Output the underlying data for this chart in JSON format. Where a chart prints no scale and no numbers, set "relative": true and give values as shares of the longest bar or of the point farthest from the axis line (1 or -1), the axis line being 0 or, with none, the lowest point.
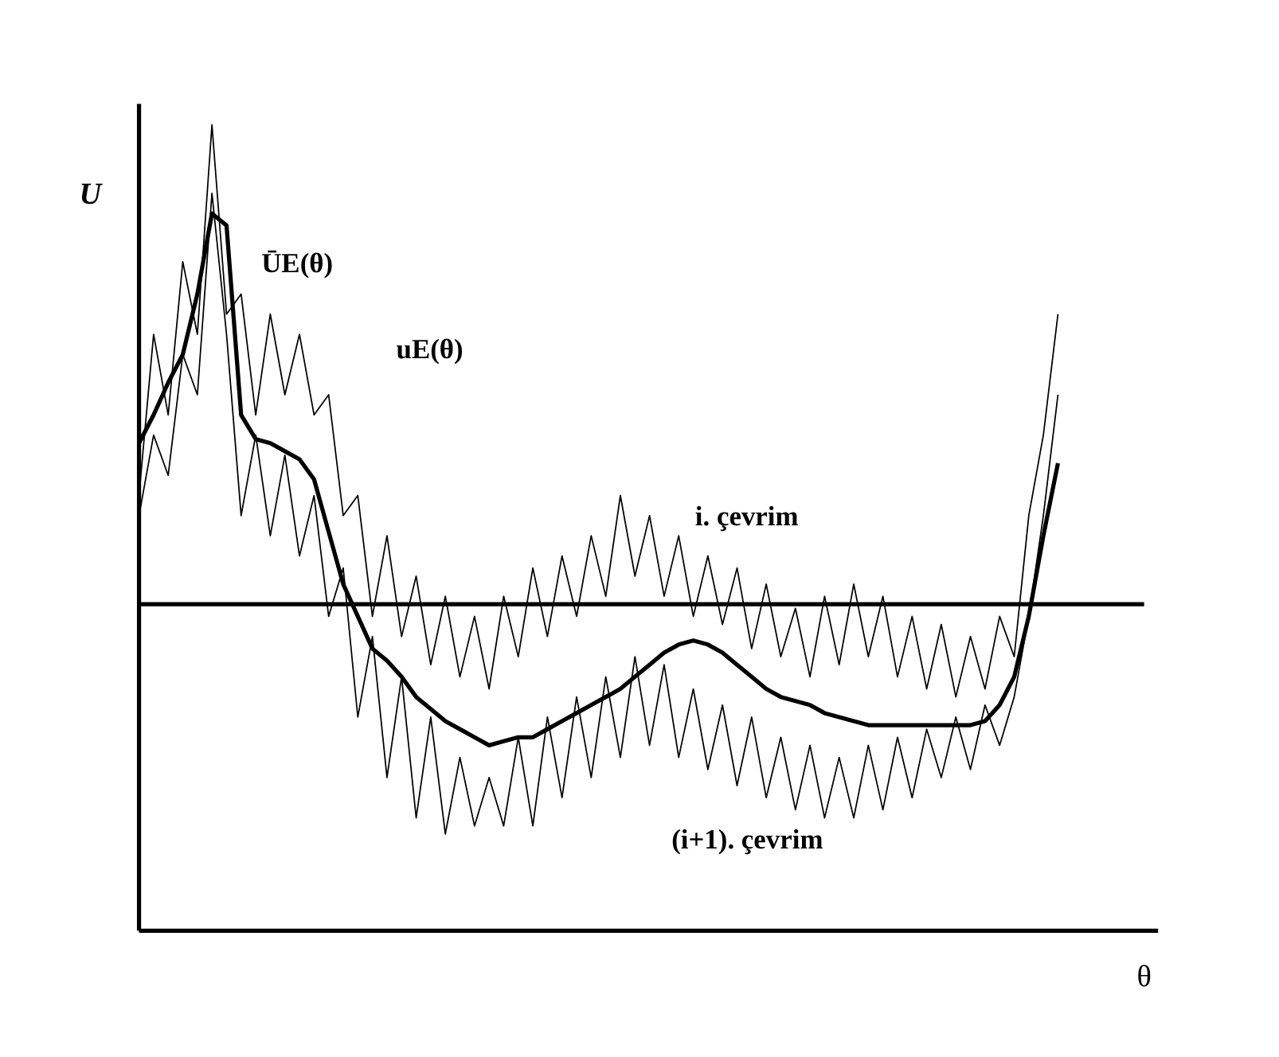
{
  "chart_data": {
    "type": "line",
    "relative": true,
    "xlabel": "θ",
    "ylabel": "U",
    "categories": [
      null,
      null,
      null,
      null,
      null,
      null,
      null,
      null,
      null,
      null,
      null,
      null,
      null,
      null,
      null,
      null,
      null,
      null,
      null,
      null,
      null,
      null,
      null,
      null,
      null,
      null,
      null,
      null,
      null,
      null,
      null,
      null,
      null,
      null,
      null,
      null,
      null,
      null,
      null,
      null,
      null,
      null,
      null,
      null,
      null,
      null,
      null,
      null,
      null,
      null,
      null,
      null,
      null,
      null,
      null,
      null,
      null,
      null,
      null,
      null,
      null,
      null,
      null,
      null
    ],
    "series": [
      {
        "name": "i. çevrim",
        "color": "#000000",
        "values": [
          0.54,
          0.74,
          0.64,
          0.83,
          0.74,
          1.0,
          0.765,
          0.79,
          0.64,
          0.765,
          0.665,
          0.74,
          0.64,
          0.665,
          0.515,
          0.54,
          0.39,
          0.49,
          0.365,
          0.44,
          0.33,
          0.415,
          0.315,
          0.39,
          0.3,
          0.415,
          0.34,
          0.45,
          0.365,
          0.465,
          0.39,
          0.49,
          0.415,
          0.54,
          0.44,
          0.515,
          0.415,
          0.49,
          0.39,
          0.465,
          0.38,
          0.45,
          0.35,
          0.43,
          0.34,
          0.4,
          0.315,
          0.415,
          0.33,
          0.43,
          0.34,
          0.415,
          0.315,
          0.39,
          0.3,
          0.38,
          0.29,
          0.365,
          0.3,
          0.39,
          0.34,
          0.515,
          0.615,
          0.765
        ]
      },
      {
        "name": "(i+1). çevrim",
        "color": "#000000",
        "values": [
          0.515,
          0.615,
          0.565,
          0.715,
          0.665,
          0.915,
          0.74,
          0.515,
          0.615,
          0.49,
          0.59,
          0.465,
          0.54,
          0.39,
          0.45,
          0.265,
          0.365,
          0.19,
          0.315,
          0.14,
          0.265,
          0.12,
          0.215,
          0.13,
          0.19,
          0.13,
          0.24,
          0.13,
          0.265,
          0.165,
          0.29,
          0.19,
          0.315,
          0.215,
          0.34,
          0.23,
          0.33,
          0.215,
          0.3,
          0.2,
          0.28,
          0.18,
          0.265,
          0.165,
          0.24,
          0.15,
          0.23,
          0.14,
          0.215,
          0.14,
          0.23,
          0.15,
          0.24,
          0.165,
          0.25,
          0.19,
          0.265,
          0.2,
          0.28,
          0.23,
          0.29,
          0.39,
          0.515,
          0.665
        ]
      },
      {
        "name": "ŪE(θ)",
        "color": "#000000",
        "values": [
          0.605,
          0.64,
          0.68,
          0.715,
          0.79,
          0.89,
          0.875,
          0.64,
          0.61,
          0.605,
          0.595,
          0.585,
          0.56,
          0.495,
          0.43,
          0.39,
          0.35,
          0.335,
          0.315,
          0.29,
          0.275,
          0.26,
          0.25,
          0.24,
          0.23,
          0.235,
          0.24,
          0.24,
          0.25,
          0.26,
          0.27,
          0.28,
          0.29,
          0.3,
          0.315,
          0.33,
          0.345,
          0.355,
          0.36,
          0.355,
          0.345,
          0.33,
          0.315,
          0.3,
          0.29,
          0.285,
          0.28,
          0.27,
          0.265,
          0.26,
          0.255,
          0.255,
          0.255,
          0.255,
          0.255,
          0.255,
          0.255,
          0.255,
          0.26,
          0.28,
          0.315,
          0.39,
          0.49,
          0.58
        ]
      }
    ],
    "ref_lines": [
      {
        "axis": "y",
        "value": 0.405,
        "color": "#000000"
      }
    ],
    "annotations": [
      "uE(θ)"
    ],
    "marker": "none",
    "line_style": "solid"
  }
}
